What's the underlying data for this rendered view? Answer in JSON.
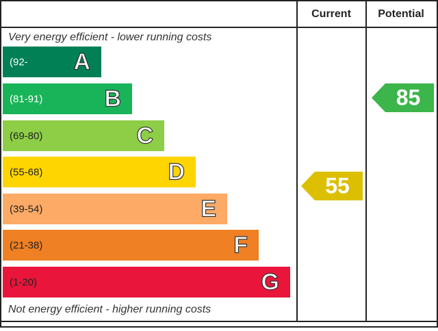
{
  "header": {
    "current": "Current",
    "potential": "Potential"
  },
  "top_note": "Very energy efficient - lower running costs",
  "bottom_note": "Not energy efficient - higher running costs",
  "bands": [
    {
      "range": "(92-",
      "letter": "A",
      "color": "#008054"
    },
    {
      "range": "(81-91)",
      "letter": "B",
      "color": "#19b459"
    },
    {
      "range": "(69-80)",
      "letter": "C",
      "color": "#8dce46"
    },
    {
      "range": "(55-68)",
      "letter": "D",
      "color": "#ffd500"
    },
    {
      "range": "(39-54)",
      "letter": "E",
      "color": "#fcaa65"
    },
    {
      "range": "(21-38)",
      "letter": "F",
      "color": "#ef8023"
    },
    {
      "range": "(1-20)",
      "letter": "G",
      "color": "#e9153b"
    }
  ],
  "current": {
    "value": 55,
    "color": "#dcbf00"
  },
  "potential": {
    "value": 85,
    "color": "#3cb54a"
  }
}
